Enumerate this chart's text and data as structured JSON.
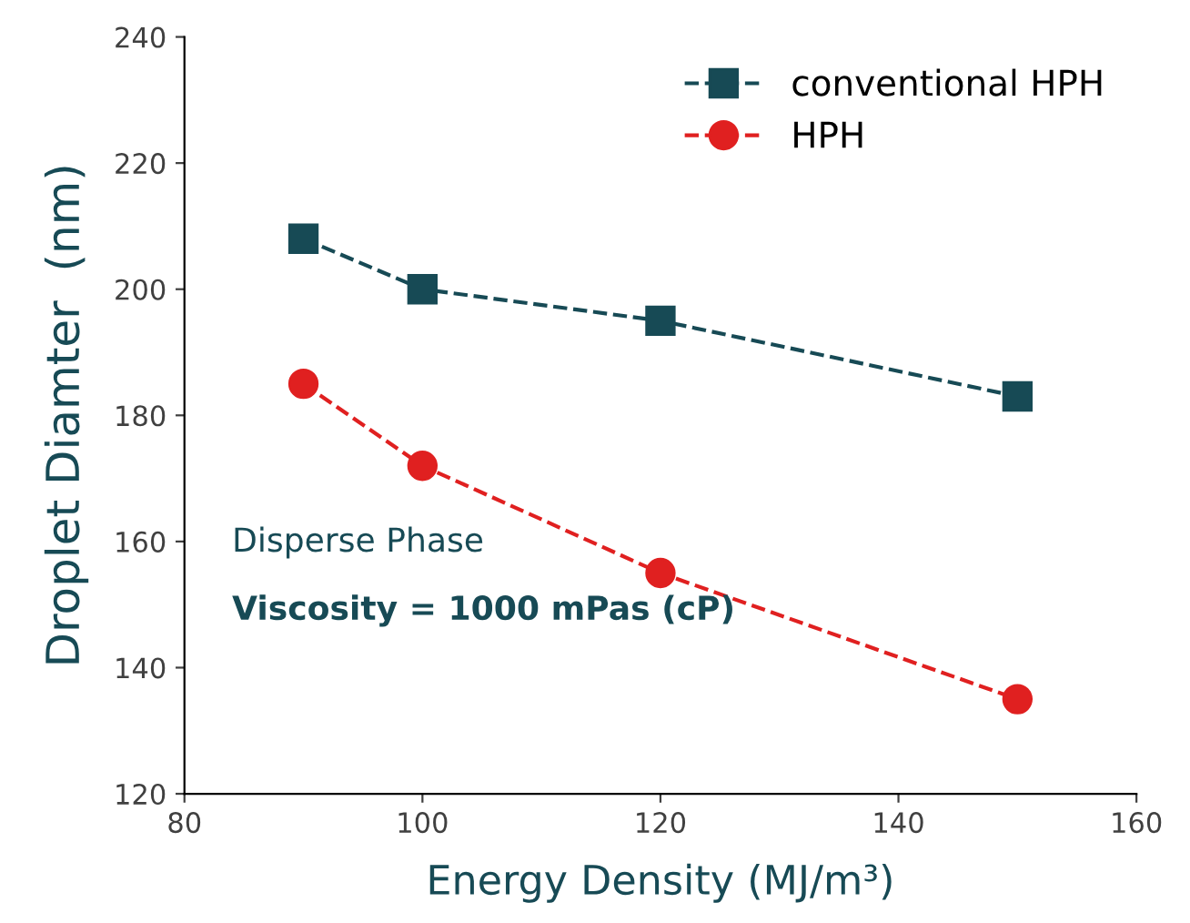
{
  "chart_data": {
    "type": "line",
    "xlabel": "Energy Density (MJ/m³)",
    "ylabel": "Droplet Diamter  (nm)",
    "x": [
      90,
      100,
      120,
      150
    ],
    "series": [
      {
        "name": "conventional HPH",
        "color": "#174a55",
        "marker": "square",
        "values": [
          208,
          200,
          195,
          183
        ]
      },
      {
        "name": "HPH",
        "color": "#e02020",
        "marker": "circle",
        "values": [
          185,
          172,
          155,
          135
        ]
      }
    ],
    "xlim": [
      80,
      160
    ],
    "xticks": [
      80,
      100,
      120,
      140,
      160
    ],
    "ylim": [
      120,
      240
    ],
    "yticks": [
      120,
      140,
      160,
      180,
      200,
      220,
      240
    ],
    "line_style": "dashed",
    "grid": false,
    "legend": "top right",
    "annotations": [
      "Disperse Phase",
      "Viscosity = 1000 mPas (cP)"
    ]
  }
}
